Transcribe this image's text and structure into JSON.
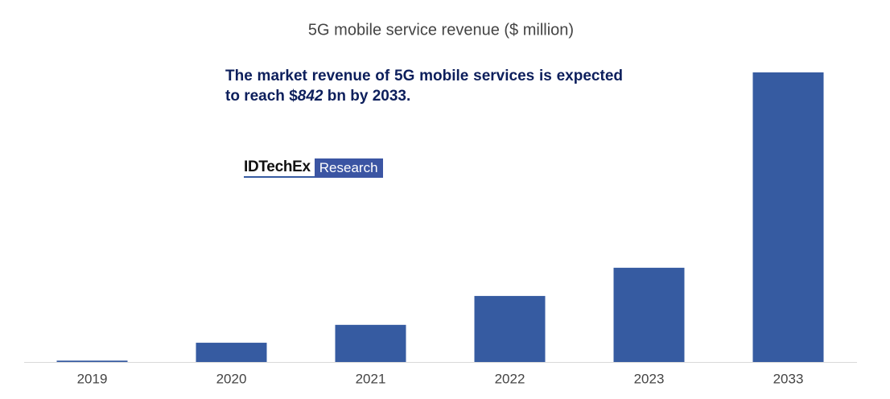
{
  "chart_data": {
    "type": "bar",
    "title": "5G mobile service revenue ($ million)",
    "categories": [
      "2019",
      "2020",
      "2021",
      "2022",
      "2023",
      "2033"
    ],
    "values": [
      4000,
      56000,
      108000,
      192000,
      274000,
      842000
    ],
    "color": "#365ba1",
    "annotation": [
      "The market revenue of 5G mobile services is expected to reach $",
      "842",
      " bn by 2033."
    ],
    "logo": [
      "IDTechEx",
      "Research"
    ]
  }
}
